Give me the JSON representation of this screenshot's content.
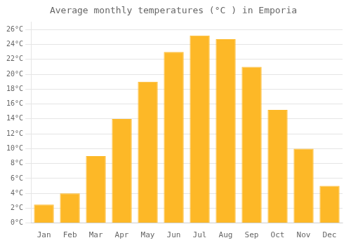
{
  "chart_data": {
    "type": "bar",
    "title": "Average monthly temperatures (°C ) in Emporia",
    "categories": [
      "Jan",
      "Feb",
      "Mar",
      "Apr",
      "May",
      "Jun",
      "Jul",
      "Aug",
      "Sep",
      "Oct",
      "Nov",
      "Dec"
    ],
    "values": [
      2.5,
      4.0,
      9.0,
      14.0,
      19.0,
      23.0,
      25.2,
      24.7,
      21.0,
      15.2,
      10.0,
      5.0
    ],
    "color": "#FDB827",
    "ylim": [
      0,
      27
    ],
    "yticks": [
      {
        "value": 0,
        "label": "0°C"
      },
      {
        "value": 2,
        "label": "2°C"
      },
      {
        "value": 4,
        "label": "4°C"
      },
      {
        "value": 6,
        "label": "6°C"
      },
      {
        "value": 8,
        "label": "8°C"
      },
      {
        "value": 10,
        "label": "10°C"
      },
      {
        "value": 12,
        "label": "12°C"
      },
      {
        "value": 14,
        "label": "14°C"
      },
      {
        "value": 16,
        "label": "16°C"
      },
      {
        "value": 18,
        "label": "18°C"
      },
      {
        "value": 20,
        "label": "20°C"
      },
      {
        "value": 22,
        "label": "22°C"
      },
      {
        "value": 24,
        "label": "24°C"
      },
      {
        "value": 26,
        "label": "26°C"
      }
    ],
    "grid": true
  }
}
